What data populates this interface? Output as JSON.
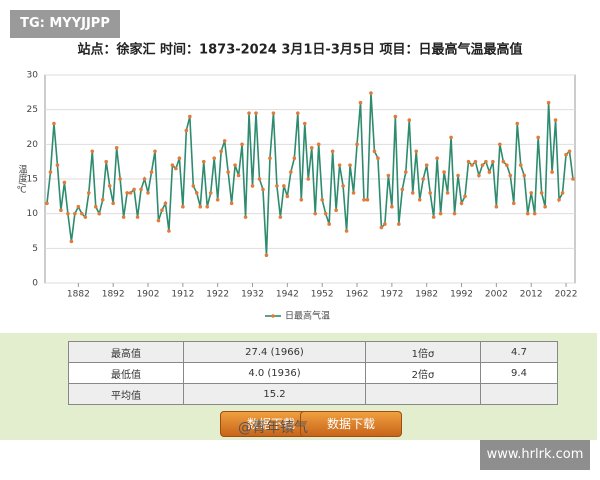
{
  "watermarks": {
    "top_left": "TG: MYYJJPP",
    "weibo": "@青年镇气",
    "bottom_right": "www.hrlrk.com"
  },
  "chart_data": {
    "type": "line",
    "title": "站点：徐家汇  时间：1873-2024  3月1日-3月5日  项目：日最高气温最高值",
    "y_label": "温度/℃",
    "x": [
      1873,
      1874,
      1875,
      1876,
      1877,
      1878,
      1879,
      1880,
      1881,
      1882,
      1883,
      1884,
      1885,
      1886,
      1887,
      1888,
      1889,
      1890,
      1891,
      1892,
      1893,
      1894,
      1895,
      1896,
      1897,
      1898,
      1899,
      1900,
      1901,
      1902,
      1903,
      1904,
      1905,
      1906,
      1907,
      1908,
      1909,
      1910,
      1911,
      1912,
      1913,
      1914,
      1915,
      1916,
      1917,
      1918,
      1919,
      1920,
      1921,
      1922,
      1923,
      1924,
      1925,
      1926,
      1927,
      1928,
      1929,
      1930,
      1931,
      1932,
      1933,
      1934,
      1935,
      1936,
      1937,
      1938,
      1939,
      1940,
      1941,
      1942,
      1943,
      1944,
      1945,
      1946,
      1947,
      1948,
      1949,
      1950,
      1951,
      1952,
      1953,
      1954,
      1955,
      1956,
      1957,
      1958,
      1959,
      1960,
      1961,
      1962,
      1963,
      1964,
      1965,
      1966,
      1967,
      1968,
      1969,
      1970,
      1971,
      1972,
      1973,
      1974,
      1975,
      1976,
      1977,
      1978,
      1979,
      1980,
      1981,
      1982,
      1983,
      1984,
      1985,
      1986,
      1987,
      1988,
      1989,
      1990,
      1991,
      1992,
      1993,
      1994,
      1995,
      1996,
      1997,
      1998,
      1999,
      2000,
      2001,
      2002,
      2003,
      2004,
      2005,
      2006,
      2007,
      2008,
      2009,
      2010,
      2011,
      2012,
      2013,
      2014,
      2015,
      2016,
      2017,
      2018,
      2019,
      2020,
      2021,
      2022,
      2023,
      2024
    ],
    "series": [
      {
        "name": "日最高气温",
        "color": "#2e8b6e",
        "marker_color": "#e07b39",
        "values": [
          11.5,
          16,
          23,
          17,
          10.5,
          14.5,
          10,
          6,
          10,
          11,
          10,
          9.5,
          13,
          19,
          11,
          10,
          12,
          17.5,
          14,
          11.5,
          19.5,
          15,
          9.5,
          13,
          13,
          13.5,
          9.5,
          13.5,
          15,
          13,
          16,
          19,
          9,
          10.5,
          11.5,
          7.5,
          17,
          16.5,
          18,
          11,
          22,
          24,
          14,
          13,
          11,
          17.5,
          11,
          13,
          18,
          12,
          19,
          20.5,
          16,
          11.5,
          17,
          15.5,
          20,
          9.5,
          24.5,
          14,
          24.5,
          15,
          13.5,
          4.0,
          18,
          24.5,
          14,
          9.5,
          14,
          12.5,
          16,
          18,
          24.5,
          12,
          23,
          15,
          19.5,
          10,
          20,
          12,
          10,
          8.5,
          19,
          10.5,
          17,
          14,
          7.5,
          17,
          13,
          20,
          26,
          12,
          12,
          27.4,
          19,
          18,
          8,
          8.5,
          15.5,
          11,
          24,
          8.5,
          13.5,
          16,
          23.5,
          13,
          19,
          12,
          15,
          17,
          13,
          9.5,
          18,
          10,
          16,
          13,
          21,
          10,
          15.5,
          11.5,
          12.5,
          17.5,
          17,
          17.5,
          15.5,
          17,
          17.5,
          16,
          17.5,
          11,
          20,
          17.5,
          17,
          15.5,
          11.5,
          23,
          17,
          15.5,
          10,
          13,
          10,
          21,
          13,
          11,
          26,
          16,
          23.5,
          12,
          13,
          18.5,
          19,
          15
        ]
      }
    ],
    "xlim": [
      1873,
      2024
    ],
    "xticks": [
      1882,
      1892,
      1902,
      1912,
      1922,
      1932,
      1942,
      1952,
      1962,
      1972,
      1982,
      1992,
      2002,
      2012,
      2022
    ],
    "ylim": [
      0,
      30
    ],
    "yticks": [
      0,
      5,
      10,
      15,
      20,
      25,
      30
    ],
    "grid": true
  },
  "table": {
    "rows": [
      [
        "最高值",
        "27.4 (1966)",
        "1倍σ",
        "4.7"
      ],
      [
        "最低值",
        "4.0 (1936)",
        "2倍σ",
        "9.4"
      ],
      [
        "平均值",
        "15.2"
      ]
    ]
  },
  "buttons": [
    "数据下载",
    "数据下载"
  ]
}
